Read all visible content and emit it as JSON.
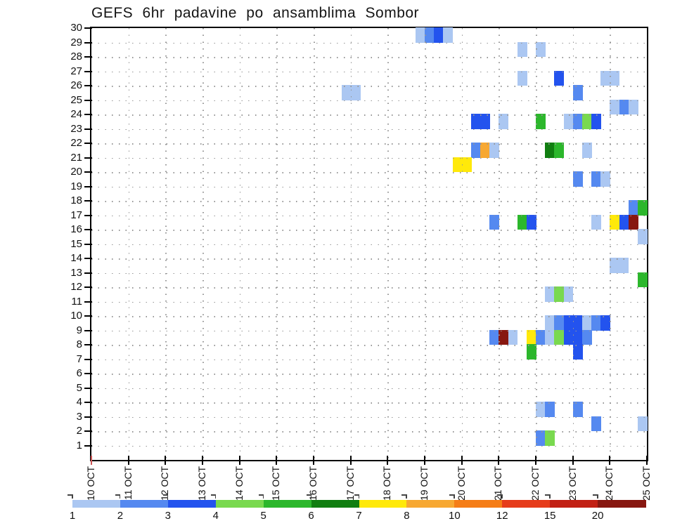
{
  "title": "GEFS 6hr padavine po ansamblima Sombor",
  "y_axis": {
    "description": "ensemble member",
    "labels": [
      1,
      2,
      3,
      4,
      5,
      6,
      7,
      8,
      9,
      10,
      11,
      12,
      13,
      14,
      15,
      16,
      17,
      18,
      19,
      20,
      21,
      22,
      23,
      24,
      25,
      26,
      27,
      28,
      29,
      30
    ]
  },
  "x_axis": {
    "description": "date, 4 six-hour steps per day",
    "labels": [
      "10 OCT",
      "11 OCT",
      "12 OCT",
      "13 OCT",
      "14 OCT",
      "15 OCT",
      "16 OCT",
      "17 OCT",
      "18 OCT",
      "19 OCT",
      "20 OCT",
      "21 OCT",
      "22 OCT",
      "23 OCT",
      "24 OCT",
      "25 OCT"
    ],
    "first_tick_color": "#cc5555",
    "tick_color": "#000000"
  },
  "legend": {
    "values": [
      "1",
      "2",
      "3",
      "4",
      "5",
      "6",
      "7",
      "8",
      "10",
      "12",
      "15",
      "20"
    ],
    "colors": {
      "1": "#abc7f2",
      "2": "#5589f0",
      "3": "#2353ee",
      "4": "#79d94f",
      "5": "#2cb72c",
      "6": "#117e11",
      "7": "#ffe90a",
      "8": "#f7a832",
      "10": "#f57d17",
      "12": "#e63c1b",
      "15": "#c22014",
      "20": "#871710"
    }
  },
  "chart_data": {
    "type": "heatmap",
    "x_unit": "6hr column index, 0 = 10 OCT 00h, 60 columns total",
    "y_unit": "ensemble member 1-30",
    "value_unit": "precipitation bucket (legend thresholds 1,2,3,4,5,6,7,8,10,12,15,20)",
    "cells": [
      [
        30,
        35,
        1
      ],
      [
        30,
        36,
        2
      ],
      [
        30,
        37,
        3
      ],
      [
        30,
        38,
        1
      ],
      [
        29,
        46,
        1
      ],
      [
        29,
        48,
        1
      ],
      [
        27,
        46,
        1
      ],
      [
        27,
        50,
        3
      ],
      [
        27,
        55,
        1
      ],
      [
        27,
        56,
        1
      ],
      [
        26,
        27,
        1
      ],
      [
        26,
        28,
        1
      ],
      [
        26,
        52,
        2
      ],
      [
        25,
        56,
        1
      ],
      [
        25,
        57,
        2
      ],
      [
        25,
        58,
        1
      ],
      [
        24,
        41,
        3
      ],
      [
        24,
        42,
        3
      ],
      [
        24,
        44,
        1
      ],
      [
        24,
        48,
        5
      ],
      [
        24,
        51,
        1
      ],
      [
        24,
        52,
        2
      ],
      [
        24,
        53,
        4
      ],
      [
        24,
        54,
        3
      ],
      [
        22,
        41,
        2
      ],
      [
        22,
        42,
        8
      ],
      [
        22,
        43,
        1
      ],
      [
        22,
        49,
        6
      ],
      [
        22,
        50,
        5
      ],
      [
        22,
        53,
        1
      ],
      [
        21,
        39,
        7
      ],
      [
        21,
        40,
        7
      ],
      [
        20,
        52,
        2
      ],
      [
        20,
        54,
        2
      ],
      [
        20,
        55,
        1
      ],
      [
        18,
        58,
        2
      ],
      [
        18,
        59,
        5
      ],
      [
        17,
        43,
        2
      ],
      [
        17,
        46,
        5
      ],
      [
        17,
        47,
        3
      ],
      [
        17,
        54,
        1
      ],
      [
        17,
        56,
        7
      ],
      [
        17,
        57,
        3
      ],
      [
        17,
        58,
        20
      ],
      [
        16,
        59,
        1
      ],
      [
        14,
        56,
        1
      ],
      [
        14,
        57,
        1
      ],
      [
        13,
        59,
        5
      ],
      [
        12,
        49,
        1
      ],
      [
        12,
        50,
        4
      ],
      [
        12,
        51,
        1
      ],
      [
        10,
        49,
        1
      ],
      [
        10,
        50,
        2
      ],
      [
        10,
        51,
        3
      ],
      [
        10,
        52,
        3
      ],
      [
        10,
        53,
        1
      ],
      [
        10,
        54,
        2
      ],
      [
        10,
        55,
        3
      ],
      [
        9,
        43,
        2
      ],
      [
        9,
        44,
        20
      ],
      [
        9,
        45,
        1
      ],
      [
        9,
        47,
        7
      ],
      [
        9,
        48,
        2
      ],
      [
        9,
        49,
        1
      ],
      [
        9,
        50,
        4
      ],
      [
        9,
        51,
        3
      ],
      [
        9,
        52,
        3
      ],
      [
        9,
        53,
        2
      ],
      [
        8,
        47,
        5
      ],
      [
        8,
        52,
        3
      ],
      [
        4,
        48,
        1
      ],
      [
        4,
        49,
        2
      ],
      [
        4,
        52,
        2
      ],
      [
        3,
        54,
        2
      ],
      [
        3,
        59,
        1
      ],
      [
        2,
        48,
        2
      ],
      [
        2,
        49,
        4
      ]
    ]
  }
}
